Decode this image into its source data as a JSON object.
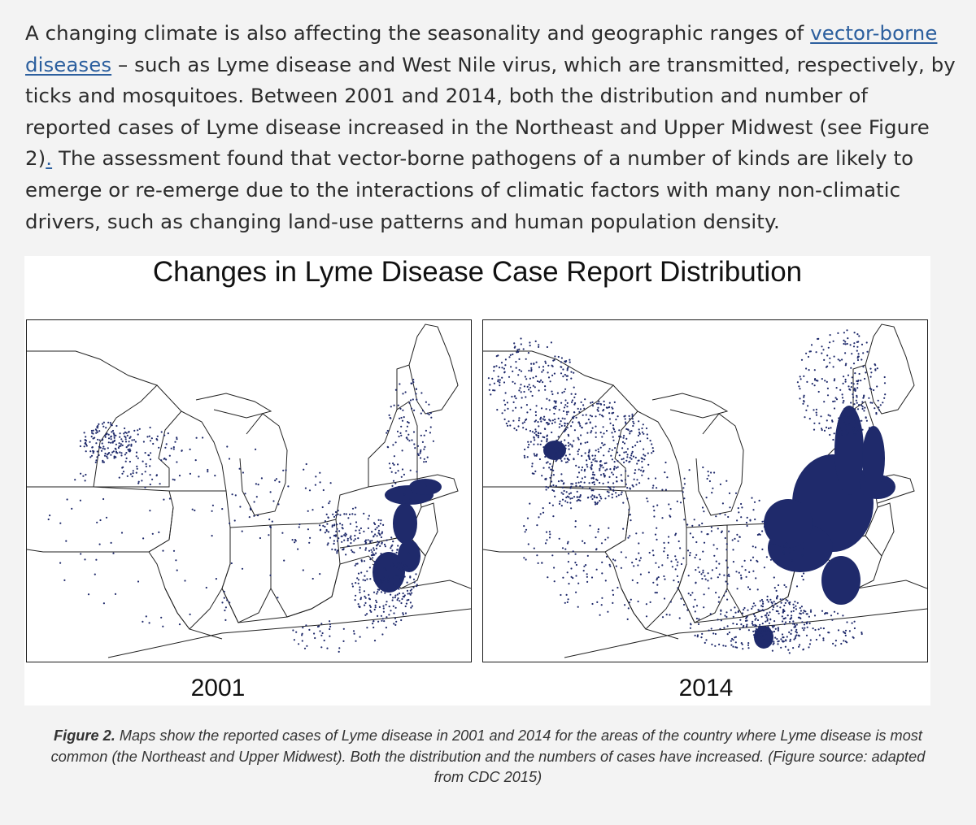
{
  "article": {
    "p_before_link": "A changing climate is also affecting the seasonality and geographic ranges of ",
    "link_text": "vector-borne diseases",
    "p_after_link": " – such as Lyme disease and West Nile virus, which are transmitted, respectively, by  ticks and mosquitoes. Between 2001 and 2014, both the distribution and number of reported cases of Lyme disease increased in the Northeast and Upper Midwest (see Figure 2)",
    "inline_link": ".",
    "p_end": " The assessment found that vector-borne pathogens of a number of kinds are likely to emerge or re-emerge due to the interactions of climatic factors with many non-climatic drivers, such as changing land-use patterns and human population density."
  },
  "figure": {
    "title": "Changes in Lyme Disease Case Report Distribution",
    "maps": [
      {
        "year": "2001",
        "dot_density": "lower"
      },
      {
        "year": "2014",
        "dot_density": "higher"
      }
    ],
    "colors": {
      "dots": "#1f2a6b",
      "borders": "#222222",
      "background": "#ffffff"
    }
  },
  "caption": {
    "label": "Figure 2.",
    "text": " Maps show the reported cases of Lyme disease in 2001 and 2014 for the areas of the country where Lyme disease is most common (the Northeast and Upper Midwest). Both the distribution and the numbers of cases have increased. (Figure source: adapted from CDC 2015)"
  }
}
